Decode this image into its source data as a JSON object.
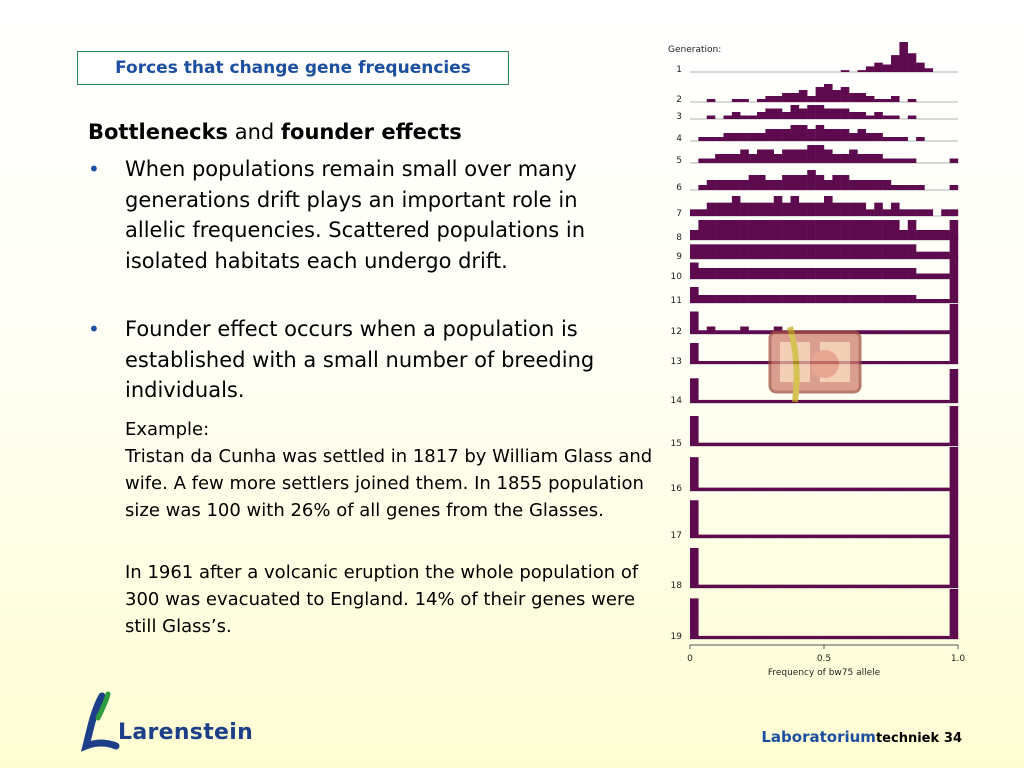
{
  "slide": {
    "title": "Forces that change gene frequencies",
    "heading": {
      "bold1": "Bottlenecks",
      "middle": " and ",
      "bold2": "founder effects"
    },
    "bullets": [
      "When populations remain small over many generations drift plays an important role in allelic frequencies. Scattered populations in isolated habitats each undergo drift.",
      "Founder effect occurs when a population is established with a small number of breeding individuals."
    ],
    "example_label": "Example:",
    "example_text": "Tristan da Cunha was settled in 1817 by William Glass and wife. A few more settlers joined them. In 1855 population size was 100 with 26% of all genes from the Glasses.",
    "example_text2": "In 1961 after a volcanic eruption the whole population of 300 was evacuated to England. 14% of their genes were still Glass’s."
  },
  "footer": {
    "brand": "Laboratorium",
    "sub": "techniek",
    "page": "34"
  },
  "logo": {
    "name": "Larenstein"
  },
  "colors": {
    "bar": "#5e0a4e",
    "title_border": "#2e8b57",
    "title_text": "#1c4fa0"
  },
  "chart_data": {
    "type": "bar",
    "title": "Generation:",
    "xlabel": "Frequency of bw75 allele",
    "x_ticks": [
      "0",
      "0.5",
      "1.0"
    ],
    "generations": [
      "1",
      "2",
      "3",
      "4",
      "5",
      "6",
      "7",
      "8",
      "9",
      "10",
      "11",
      "12",
      "13",
      "14",
      "15",
      "16",
      "17",
      "18",
      "19"
    ],
    "series": [
      [
        0,
        0,
        0,
        0,
        0,
        0,
        0,
        0,
        0,
        0,
        0,
        0,
        0,
        0,
        0,
        0,
        0,
        0,
        1,
        0,
        1,
        3,
        5,
        4,
        9,
        16,
        10,
        5,
        2,
        0,
        0,
        0
      ],
      [
        0,
        0,
        1,
        0,
        0,
        1,
        1,
        0,
        1,
        2,
        2,
        3,
        3,
        4,
        2,
        5,
        6,
        4,
        5,
        3,
        3,
        2,
        1,
        1,
        2,
        0,
        1,
        0,
        0,
        0,
        0,
        0
      ],
      [
        0,
        0,
        1,
        0,
        1,
        2,
        1,
        1,
        2,
        3,
        3,
        2,
        4,
        3,
        4,
        4,
        3,
        3,
        3,
        2,
        2,
        1,
        2,
        1,
        1,
        0,
        1,
        0,
        0,
        0,
        0,
        0
      ],
      [
        0,
        1,
        1,
        1,
        2,
        2,
        2,
        2,
        2,
        3,
        3,
        3,
        4,
        4,
        3,
        4,
        3,
        3,
        3,
        2,
        3,
        2,
        2,
        1,
        1,
        1,
        0,
        1,
        0,
        0,
        0,
        0
      ],
      [
        0,
        1,
        1,
        2,
        2,
        2,
        3,
        2,
        3,
        3,
        2,
        3,
        3,
        3,
        4,
        4,
        3,
        2,
        2,
        3,
        2,
        2,
        2,
        1,
        1,
        1,
        1,
        0,
        0,
        0,
        0,
        1
      ],
      [
        0,
        1,
        2,
        2,
        2,
        2,
        2,
        3,
        3,
        2,
        2,
        3,
        3,
        3,
        4,
        3,
        2,
        3,
        3,
        2,
        2,
        2,
        2,
        2,
        1,
        1,
        1,
        1,
        0,
        0,
        0,
        1
      ],
      [
        1,
        1,
        2,
        2,
        2,
        3,
        2,
        2,
        2,
        2,
        3,
        2,
        3,
        2,
        2,
        2,
        3,
        2,
        2,
        2,
        2,
        1,
        2,
        1,
        2,
        1,
        1,
        1,
        1,
        0,
        1,
        1
      ],
      [
        1,
        2,
        2,
        2,
        2,
        2,
        2,
        2,
        2,
        2,
        2,
        2,
        2,
        2,
        2,
        2,
        2,
        2,
        2,
        2,
        2,
        2,
        2,
        2,
        2,
        1,
        2,
        1,
        1,
        1,
        1,
        2
      ],
      [
        2,
        2,
        2,
        2,
        2,
        2,
        2,
        2,
        2,
        2,
        2,
        2,
        2,
        2,
        2,
        2,
        2,
        2,
        2,
        2,
        2,
        2,
        2,
        2,
        2,
        2,
        2,
        1,
        1,
        1,
        1,
        3
      ],
      [
        3,
        2,
        2,
        2,
        2,
        2,
        2,
        2,
        2,
        2,
        2,
        2,
        2,
        2,
        2,
        2,
        2,
        2,
        2,
        2,
        2,
        2,
        2,
        2,
        2,
        2,
        2,
        1,
        1,
        1,
        1,
        4
      ],
      [
        4,
        2,
        2,
        2,
        2,
        2,
        2,
        2,
        2,
        2,
        2,
        2,
        2,
        2,
        2,
        2,
        2,
        2,
        2,
        2,
        2,
        2,
        2,
        2,
        2,
        2,
        2,
        1,
        1,
        1,
        1,
        6
      ],
      [
        6,
        1,
        2,
        1,
        1,
        1,
        2,
        1,
        1,
        1,
        2,
        1,
        1,
        1,
        1,
        1,
        1,
        1,
        1,
        1,
        1,
        1,
        1,
        1,
        1,
        1,
        1,
        1,
        1,
        1,
        1,
        8
      ],
      [
        7,
        1,
        1,
        1,
        1,
        1,
        1,
        1,
        1,
        1,
        1,
        1,
        1,
        1,
        1,
        1,
        1,
        1,
        1,
        1,
        1,
        1,
        1,
        1,
        1,
        1,
        1,
        1,
        1,
        1,
        1,
        10
      ],
      [
        8,
        1,
        1,
        1,
        1,
        1,
        1,
        1,
        1,
        1,
        1,
        1,
        1,
        1,
        1,
        1,
        1,
        1,
        1,
        1,
        1,
        1,
        1,
        1,
        1,
        1,
        1,
        1,
        1,
        1,
        1,
        11
      ],
      [
        9,
        1,
        1,
        1,
        1,
        1,
        1,
        1,
        1,
        1,
        1,
        1,
        1,
        1,
        1,
        1,
        1,
        1,
        1,
        1,
        1,
        1,
        1,
        1,
        1,
        1,
        1,
        1,
        1,
        1,
        1,
        12
      ],
      [
        10,
        1,
        1,
        1,
        1,
        1,
        1,
        1,
        1,
        1,
        1,
        1,
        1,
        1,
        1,
        1,
        1,
        1,
        1,
        1,
        1,
        1,
        1,
        1,
        1,
        1,
        1,
        1,
        1,
        1,
        1,
        13
      ],
      [
        11,
        1,
        1,
        1,
        1,
        1,
        1,
        1,
        1,
        1,
        1,
        1,
        1,
        1,
        1,
        1,
        1,
        1,
        1,
        1,
        1,
        1,
        1,
        1,
        1,
        1,
        1,
        1,
        1,
        1,
        1,
        14
      ],
      [
        12,
        1,
        1,
        1,
        1,
        1,
        1,
        1,
        1,
        1,
        1,
        1,
        1,
        1,
        1,
        1,
        1,
        1,
        1,
        1,
        1,
        1,
        1,
        1,
        1,
        1,
        1,
        1,
        1,
        1,
        1,
        15
      ],
      [
        13,
        1,
        1,
        1,
        1,
        1,
        1,
        1,
        1,
        1,
        1,
        1,
        1,
        1,
        1,
        1,
        1,
        1,
        1,
        1,
        1,
        1,
        1,
        1,
        1,
        1,
        1,
        1,
        1,
        1,
        1,
        16
      ]
    ]
  }
}
